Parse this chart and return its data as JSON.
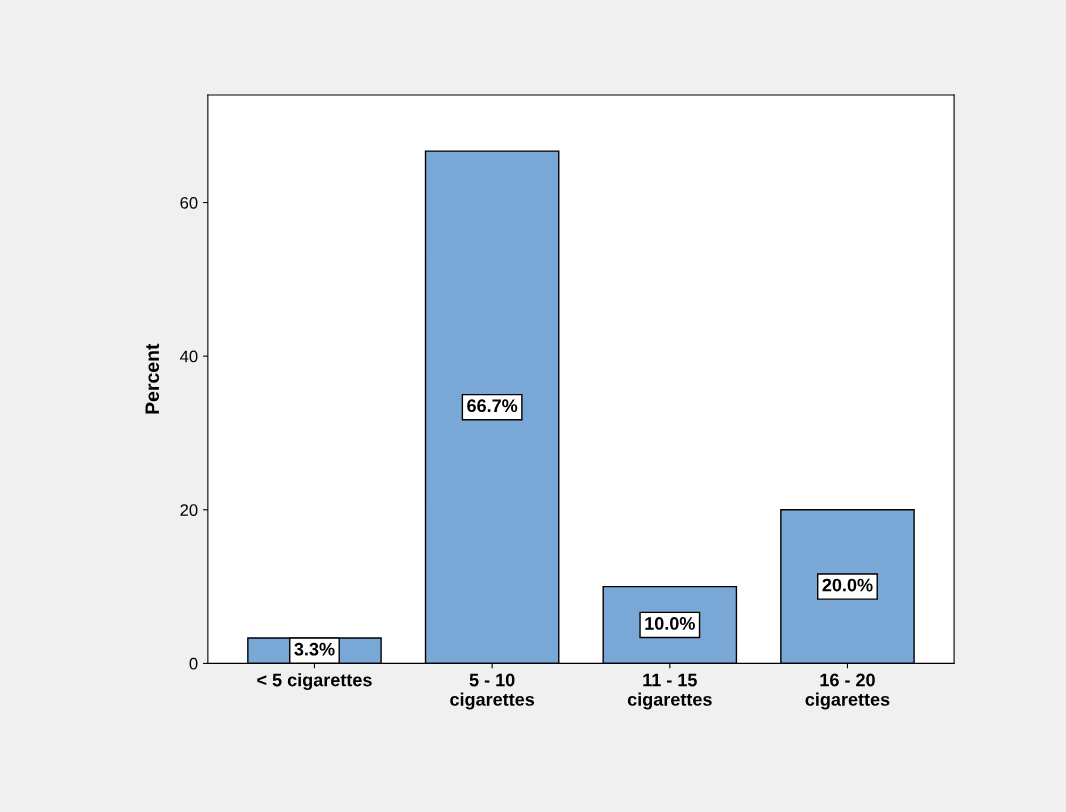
{
  "chart_data": {
    "type": "bar",
    "ylabel": "Percent",
    "categories": [
      "< 5 cigarettes",
      "5 - 10\ncigarettes",
      "11 - 15\ncigarettes",
      "16 - 20\ncigarettes"
    ],
    "values": [
      3.3,
      66.7,
      10.0,
      20.0
    ],
    "value_labels": [
      "3.3%",
      "66.7%",
      "10.0%",
      "20.0%"
    ],
    "color": "#79a7d6",
    "ylim": [
      0,
      74
    ],
    "yticks": [
      0,
      20,
      40,
      60
    ],
    "grid": false,
    "legend": false
  }
}
